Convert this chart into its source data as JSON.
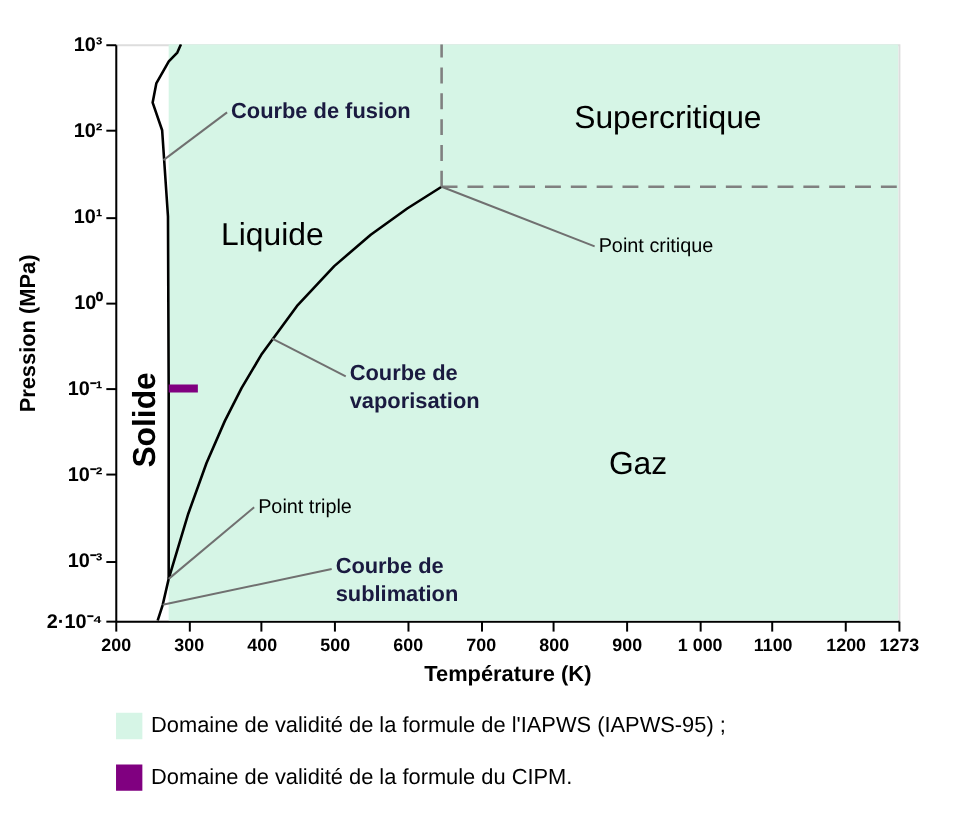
{
  "chart_data": {
    "type": "line",
    "xlabel": "Température (K)",
    "ylabel": "Pression (MPa)",
    "xlim": [
      200,
      1273
    ],
    "ylim": [
      0.0002,
      1000
    ],
    "log": "y",
    "xticks": [
      200,
      300,
      400,
      500,
      600,
      700,
      800,
      900,
      {
        "value": 1000,
        "label": "1 000"
      },
      1100,
      1200,
      1273
    ],
    "yticks": [
      {
        "value": 0.0002,
        "label": "2·10⁻⁴"
      },
      {
        "value": 0.001,
        "label": "10⁻³"
      },
      {
        "value": 0.01,
        "label": "10⁻²"
      },
      {
        "value": 0.1,
        "label": "10⁻¹"
      },
      {
        "value": 1,
        "label": "10⁰"
      },
      {
        "value": 10,
        "label": "10¹"
      },
      {
        "value": 100,
        "label": "10²"
      },
      {
        "value": 1000,
        "label": "10³"
      }
    ],
    "grid": false,
    "legend": "bottom left",
    "marker": "none",
    "bands": [
      {
        "axis": "x",
        "from": 273.16,
        "to": 1273,
        "label": "Domaine de validité de la formule de l'IAPWS (IAPWS-95) ;",
        "color": "#d6f5e6"
      }
    ],
    "series": [
      {
        "color": "#000000",
        "x": [
          258,
          265,
          273.16,
          273.15,
          272.2,
          264.2,
          251.2,
          256.2,
          273.3,
          285,
          290
        ],
        "values": [
          0.0002,
          0.000306,
          0.000612,
          0.1,
          10,
          100,
          209.9,
          350.1,
          632.4,
          800,
          1000
        ]
      },
      {
        "color": "#000000",
        "x": [
          273.16,
          300,
          325,
          350,
          373.15,
          400,
          450,
          500,
          550,
          600,
          647.1
        ],
        "values": [
          0.000612,
          0.0035,
          0.0136,
          0.0417,
          0.1013,
          0.2456,
          0.932,
          2.639,
          6.117,
          12.34,
          22.06
        ]
      },
      {
        "color": "#808080",
        "line_style": "dashed",
        "x": [
          647.1,
          647.1
        ],
        "values": [
          22.06,
          1000
        ]
      },
      {
        "color": "#808080",
        "line_style": "dashed",
        "x": [
          647.1,
          1273
        ],
        "values": [
          22.06,
          22.06
        ]
      },
      {
        "name": "Domaine de validité de la formule du CIPM.",
        "color": "#800080",
        "x": [
          273.15,
          313.15
        ],
        "values": [
          0.1,
          0.1
        ]
      }
    ],
    "annotations": [
      {
        "text": "Courbe de fusion",
        "x": 266,
        "y": 45
      },
      "Liquide",
      "Supercritique",
      {
        "text": "Point critique",
        "x": 647.1,
        "y": 22.06
      },
      "Solide",
      {
        "text": "Courbe de\nvaporisation",
        "x": 415,
        "y": 0.38
      },
      "Gaz",
      {
        "text": "Point triple",
        "x": 273.16,
        "y": 0.000612
      },
      {
        "text": "Courbe de\nsublimation",
        "x": 265,
        "y": 0.000306
      }
    ]
  }
}
